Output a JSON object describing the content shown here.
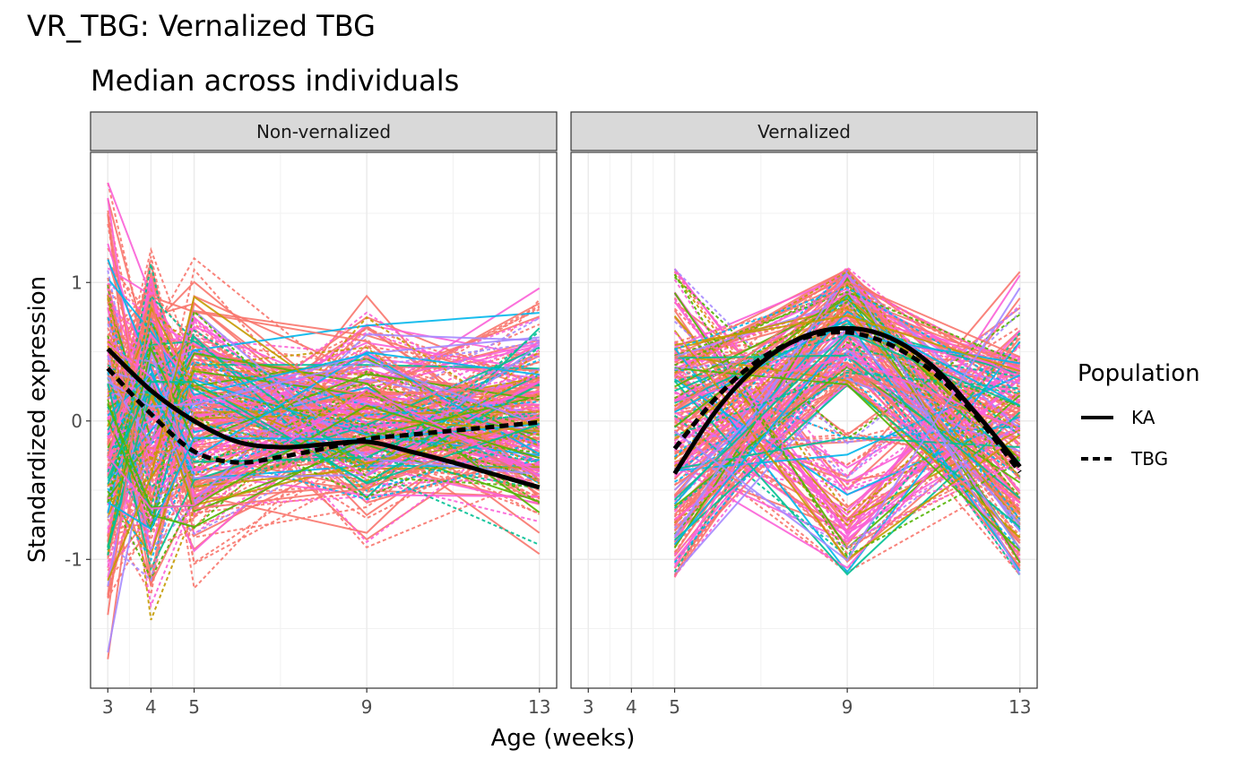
{
  "chart_data": {
    "type": "line",
    "title": "VR_TBG: Vernalized TBG",
    "subtitle": "Median across individuals",
    "xlabel": "Age (weeks)",
    "ylabel": "Standardized expression",
    "x_ticks": [
      3,
      4,
      5,
      9,
      13
    ],
    "y_ticks": [
      -1,
      0,
      1
    ],
    "xlim": [
      2.6,
      13.4
    ],
    "ylim": [
      -1.93,
      1.94
    ],
    "grid": true,
    "facets": [
      "Non-vernalized",
      "Vernalized"
    ],
    "legend": {
      "title": "Population",
      "position": "right",
      "entries": [
        {
          "label": "KA",
          "linetype": "solid"
        },
        {
          "label": "TBG",
          "linetype": "dashed"
        }
      ]
    },
    "gene_line_colors": [
      "#F8766D",
      "#C49A00",
      "#53B400",
      "#00C094",
      "#00B6EB",
      "#A58AFF",
      "#FB61D7"
    ],
    "background_lines": "many individual gene trajectories (one per gene, colored by gene, linetype by population)",
    "series": [
      {
        "facet": "Non-vernalized",
        "name": "KA",
        "linetype": "solid",
        "x": [
          3,
          4,
          5,
          6,
          7,
          8,
          9,
          10,
          11,
          12,
          13
        ],
        "y": [
          0.52,
          0.22,
          0.0,
          -0.15,
          -0.19,
          -0.17,
          -0.15,
          -0.22,
          -0.3,
          -0.39,
          -0.48
        ]
      },
      {
        "facet": "Non-vernalized",
        "name": "TBG",
        "linetype": "dashed",
        "x": [
          3,
          4,
          5,
          6,
          7,
          8,
          9,
          10,
          11,
          12,
          13
        ],
        "y": [
          0.38,
          0.05,
          -0.22,
          -0.3,
          -0.26,
          -0.2,
          -0.13,
          -0.1,
          -0.07,
          -0.04,
          -0.01
        ]
      },
      {
        "facet": "Vernalized",
        "name": "KA",
        "linetype": "solid",
        "x": [
          5,
          6,
          7,
          8,
          9,
          10,
          11,
          12,
          13
        ],
        "y": [
          -0.38,
          0.09,
          0.42,
          0.61,
          0.67,
          0.6,
          0.39,
          0.05,
          -0.33
        ]
      },
      {
        "facet": "Vernalized",
        "name": "TBG",
        "linetype": "dashed",
        "x": [
          5,
          6,
          7,
          8,
          9,
          10,
          11,
          12,
          13
        ],
        "y": [
          -0.2,
          0.18,
          0.45,
          0.6,
          0.64,
          0.55,
          0.35,
          0.03,
          -0.37
        ]
      }
    ]
  }
}
